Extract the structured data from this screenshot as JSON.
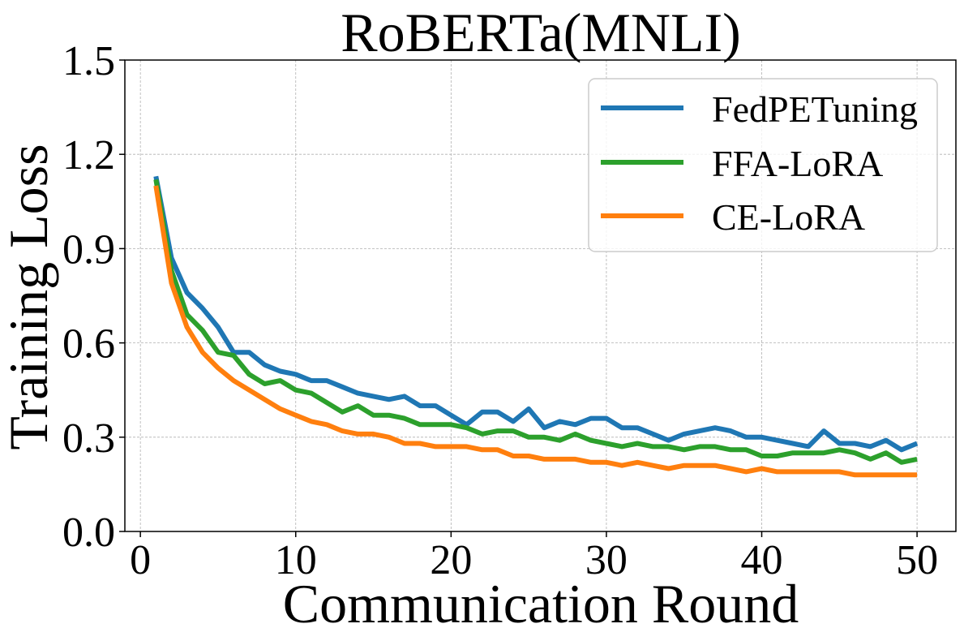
{
  "chart_data": {
    "type": "line",
    "title": "RoBERTa(MNLI)",
    "xlabel": "Communication Round",
    "ylabel": "Training Loss",
    "xlim": [
      -1,
      52.5
    ],
    "ylim": [
      0.0,
      1.5
    ],
    "xticks": [
      0,
      10,
      20,
      30,
      40,
      50
    ],
    "yticks": [
      0.0,
      0.3,
      0.6,
      0.9,
      1.2,
      1.5
    ],
    "xtick_labels": [
      "0",
      "10",
      "20",
      "30",
      "40",
      "50"
    ],
    "ytick_labels": [
      "0.0",
      "0.3",
      "0.6",
      "0.9",
      "1.2",
      "1.5"
    ],
    "grid": true,
    "legend_position": "top-right",
    "x": [
      1,
      2,
      3,
      4,
      5,
      6,
      7,
      8,
      9,
      10,
      11,
      12,
      13,
      14,
      15,
      16,
      17,
      18,
      19,
      20,
      21,
      22,
      23,
      24,
      25,
      26,
      27,
      28,
      29,
      30,
      31,
      32,
      33,
      34,
      35,
      36,
      37,
      38,
      39,
      40,
      41,
      42,
      43,
      44,
      45,
      46,
      47,
      48,
      49,
      50
    ],
    "series": [
      {
        "name": "FedPETuning",
        "color": "#1f77b4",
        "values": [
          1.13,
          0.87,
          0.76,
          0.71,
          0.65,
          0.57,
          0.57,
          0.53,
          0.51,
          0.5,
          0.48,
          0.48,
          0.46,
          0.44,
          0.43,
          0.42,
          0.43,
          0.4,
          0.4,
          0.37,
          0.34,
          0.38,
          0.38,
          0.35,
          0.39,
          0.33,
          0.35,
          0.34,
          0.36,
          0.36,
          0.33,
          0.33,
          0.31,
          0.29,
          0.31,
          0.32,
          0.33,
          0.32,
          0.3,
          0.3,
          0.29,
          0.28,
          0.27,
          0.32,
          0.28,
          0.28,
          0.27,
          0.29,
          0.26,
          0.28
        ]
      },
      {
        "name": "FFA-LoRA",
        "color": "#2ca02c",
        "values": [
          1.12,
          0.83,
          0.69,
          0.64,
          0.57,
          0.56,
          0.5,
          0.47,
          0.48,
          0.45,
          0.44,
          0.41,
          0.38,
          0.4,
          0.37,
          0.37,
          0.36,
          0.34,
          0.34,
          0.34,
          0.33,
          0.31,
          0.32,
          0.32,
          0.3,
          0.3,
          0.29,
          0.31,
          0.29,
          0.28,
          0.27,
          0.28,
          0.27,
          0.27,
          0.26,
          0.27,
          0.27,
          0.26,
          0.26,
          0.24,
          0.24,
          0.25,
          0.25,
          0.25,
          0.26,
          0.25,
          0.23,
          0.25,
          0.22,
          0.23
        ]
      },
      {
        "name": "CE-LoRA",
        "color": "#ff7f0e",
        "values": [
          1.1,
          0.79,
          0.65,
          0.57,
          0.52,
          0.48,
          0.45,
          0.42,
          0.39,
          0.37,
          0.35,
          0.34,
          0.32,
          0.31,
          0.31,
          0.3,
          0.28,
          0.28,
          0.27,
          0.27,
          0.27,
          0.26,
          0.26,
          0.24,
          0.24,
          0.23,
          0.23,
          0.23,
          0.22,
          0.22,
          0.21,
          0.22,
          0.21,
          0.2,
          0.21,
          0.21,
          0.21,
          0.2,
          0.19,
          0.2,
          0.19,
          0.19,
          0.19,
          0.19,
          0.19,
          0.18,
          0.18,
          0.18,
          0.18,
          0.18
        ]
      }
    ]
  }
}
